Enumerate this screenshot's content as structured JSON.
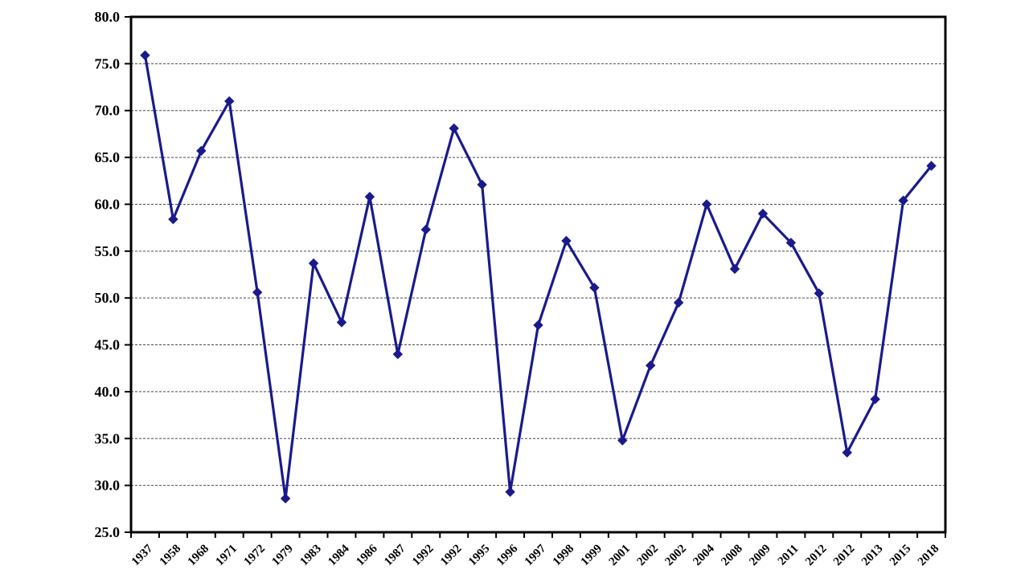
{
  "chart_data": {
    "type": "line",
    "title": "",
    "xlabel": "",
    "ylabel": "",
    "legend": "none",
    "grid": "horizontal-dashed",
    "categories": [
      "1937",
      "1958",
      "1968",
      "1971",
      "1972",
      "1979",
      "1983",
      "1984",
      "1986",
      "1987",
      "1992",
      "1992",
      "1995",
      "1996",
      "1997",
      "1998",
      "1999",
      "2001",
      "2002",
      "2002",
      "2004",
      "2008",
      "2009",
      "2011",
      "2012",
      "2012",
      "2013",
      "2015",
      "2018"
    ],
    "values": [
      75.9,
      58.4,
      65.7,
      71.0,
      50.6,
      28.6,
      53.7,
      47.4,
      60.8,
      44.0,
      57.3,
      68.1,
      62.1,
      29.3,
      47.1,
      56.1,
      51.1,
      34.8,
      42.8,
      49.5,
      60.0,
      53.1,
      59.0,
      55.9,
      50.5,
      33.5,
      39.2,
      60.4,
      64.1
    ],
    "ylim": [
      25,
      80
    ],
    "ytick_step": 5,
    "ytick_labels": [
      "25.0",
      "30.0",
      "35.0",
      "40.0",
      "45.0",
      "50.0",
      "55.0",
      "60.0",
      "65.0",
      "70.0",
      "75.0",
      "80.0"
    ],
    "marker": "diamond",
    "line_color": "#1a1a8c",
    "marker_color": "#1a1a8c",
    "axis_color": "#000000",
    "gridline_color": "#4a4a4a",
    "background_color": "#ffffff"
  }
}
